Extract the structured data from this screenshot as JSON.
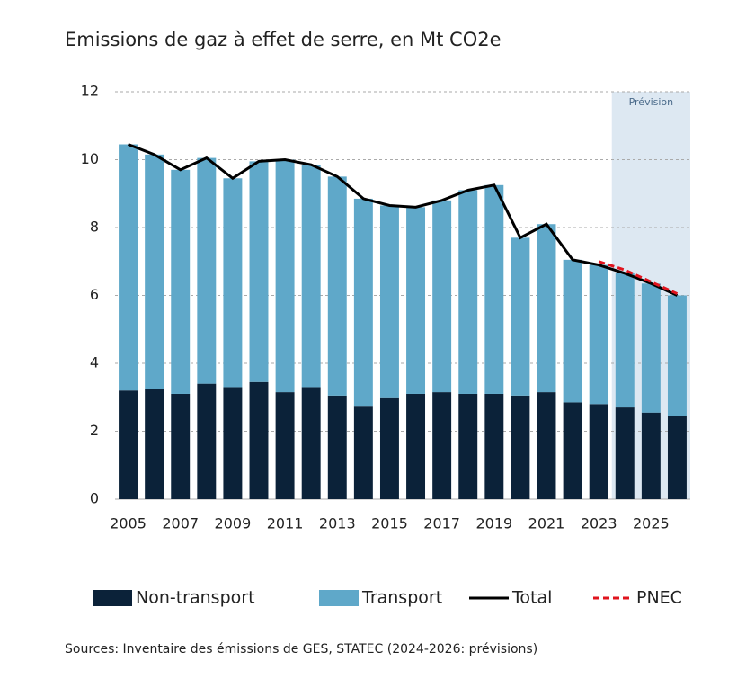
{
  "chart_data": {
    "type": "bar",
    "stacked": true,
    "title": "Emissions de gaz à effet de serre, en Mt CO2e",
    "source": "Sources: Inventaire des émissions de GES, STATEC (2024-2026: prévisions)",
    "x": [
      2005,
      2006,
      2007,
      2008,
      2009,
      2010,
      2011,
      2012,
      2013,
      2014,
      2015,
      2016,
      2017,
      2018,
      2019,
      2020,
      2021,
      2022,
      2023,
      2024,
      2025,
      2026
    ],
    "xlim": [
      2004.5,
      2026.5
    ],
    "xticks": [
      2005,
      2007,
      2009,
      2011,
      2013,
      2015,
      2017,
      2019,
      2021,
      2023,
      2025
    ],
    "ylim": [
      0,
      12
    ],
    "yticks": [
      0,
      2,
      4,
      6,
      8,
      10,
      12
    ],
    "grid": true,
    "shade": {
      "label": "Prévision",
      "xlim": [
        2023.5,
        2026.5
      ],
      "color": "#dde8f2"
    },
    "series": [
      {
        "name": "Non-transport",
        "type": "bar",
        "color": "#0b2239",
        "values": [
          3.2,
          3.25,
          3.1,
          3.4,
          3.3,
          3.45,
          3.15,
          3.3,
          3.05,
          2.75,
          3.0,
          3.1,
          3.15,
          3.1,
          3.1,
          3.05,
          3.15,
          2.85,
          2.8,
          2.7,
          2.55,
          2.45
        ]
      },
      {
        "name": "Transport",
        "type": "bar",
        "color": "#5fa8c9",
        "values": [
          7.25,
          6.9,
          6.6,
          6.65,
          6.15,
          6.5,
          6.85,
          6.55,
          6.45,
          6.1,
          5.65,
          5.5,
          5.65,
          6.0,
          6.15,
          4.65,
          4.95,
          4.2,
          4.1,
          3.95,
          3.8,
          3.55
        ]
      },
      {
        "name": "Total",
        "type": "line",
        "color": "#000000",
        "dashed": false,
        "values": [
          10.45,
          10.15,
          9.7,
          10.05,
          9.45,
          9.95,
          10.0,
          9.85,
          9.5,
          8.85,
          8.65,
          8.6,
          8.8,
          9.1,
          9.25,
          7.7,
          8.1,
          7.05,
          6.9,
          6.65,
          6.35,
          6.0
        ]
      },
      {
        "name": "PNEC",
        "type": "line",
        "color": "#e0141e",
        "dashed": true,
        "values": [
          null,
          null,
          null,
          null,
          null,
          null,
          null,
          null,
          null,
          null,
          null,
          null,
          null,
          null,
          null,
          null,
          null,
          null,
          7.0,
          6.75,
          6.4,
          6.05
        ]
      }
    ]
  }
}
